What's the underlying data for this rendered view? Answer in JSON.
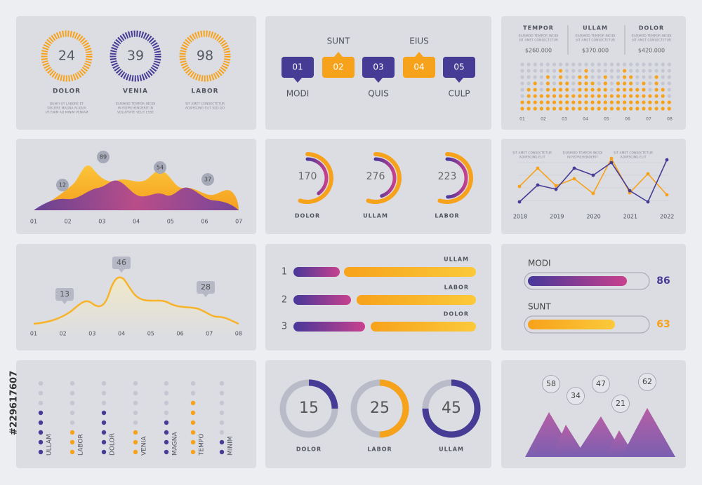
{
  "watermark_id": "#229617607",
  "gauges": [
    {
      "value": 24,
      "label": "DOLOR",
      "note": [
        "DUNYI UT LABORE ET",
        "DOLORE MAGNA ALIQUA",
        "UT ENIM AD MINIM VENIAM"
      ]
    },
    {
      "value": 39,
      "label": "VENIA",
      "note": [
        "EIUSMOD TEMPOR INCIDI",
        "IN REPREHENDERIT IN",
        "VOLUPTATE VELIT ESSE"
      ]
    },
    {
      "value": 98,
      "label": "LABOR",
      "note": [
        "SIT AMET CONSECTETUR",
        "ADIPISCING ELIT SED DO"
      ]
    }
  ],
  "steps": {
    "top_labels": [
      "SUNT",
      "EIUS"
    ],
    "boxes": [
      "01",
      "02",
      "03",
      "04",
      "05"
    ],
    "bottom_labels": [
      "MODI",
      "QUIS",
      "CULP"
    ]
  },
  "dot_columns": {
    "headers": [
      {
        "title": "TEMPOR",
        "note": [
          "EIUSMOD TEMPOR INCIDI",
          "SIT AMET CONSECTETUR"
        ],
        "amount": "$260.000"
      },
      {
        "title": "ULLAM",
        "note": [
          "EIUSMOD TEMPOR INCIDI",
          "SIT AMET CONSECTETUR"
        ],
        "amount": "$370.000"
      },
      {
        "title": "DOLOR",
        "note": [
          "EIUSMOD TEMPOR INCIDI",
          "SIT AMET CONSECTETUR"
        ],
        "amount": "$420.000"
      }
    ],
    "x_labels": [
      "01",
      "02",
      "03",
      "04",
      "05",
      "06",
      "07",
      "08"
    ]
  },
  "waves": {
    "callouts": [
      12,
      89,
      54,
      37
    ],
    "x_labels": [
      "01",
      "02",
      "03",
      "04",
      "05",
      "06",
      "07"
    ]
  },
  "rings": [
    {
      "value": 170,
      "label": "DOLOR"
    },
    {
      "value": 276,
      "label": "ULLAM"
    },
    {
      "value": 223,
      "label": "LABOR"
    }
  ],
  "line_chart": {
    "captions": [
      [
        "SIT AMET CONSECTETUR",
        "ADIPISCING ELIT"
      ],
      [
        "EIUSMOD TEMPOR INCIDI",
        "IN REPREHENDERIT"
      ],
      [
        "SIT AMET CONSECTETUR",
        "ADIPISCING ELIT"
      ]
    ],
    "years": [
      "2018",
      "2019",
      "2020",
      "2021",
      "2022"
    ]
  },
  "curve": {
    "callouts": [
      13,
      46,
      28
    ],
    "x_labels": [
      "01",
      "02",
      "03",
      "04",
      "05",
      "06",
      "07",
      "08"
    ]
  },
  "ranked_bars": [
    {
      "rank": 1,
      "label": "ULLAM"
    },
    {
      "rank": 2,
      "label": "LABOR"
    },
    {
      "rank": 3,
      "label": "DOLOR"
    }
  ],
  "progress": [
    {
      "label": "MODI",
      "value": 86
    },
    {
      "label": "SUNT",
      "value": 63
    }
  ],
  "dot_legend": [
    "ULLAM",
    "LABOR",
    "DOLOR",
    "VENIA",
    "MAGNA",
    "TEMPO",
    "MINIM"
  ],
  "donuts": [
    {
      "value": 15,
      "label": "DOLOR"
    },
    {
      "value": 25,
      "label": "LABOR"
    },
    {
      "value": 45,
      "label": "ULLAM"
    }
  ],
  "bubbles": [
    58,
    34,
    47,
    21,
    62
  ]
}
